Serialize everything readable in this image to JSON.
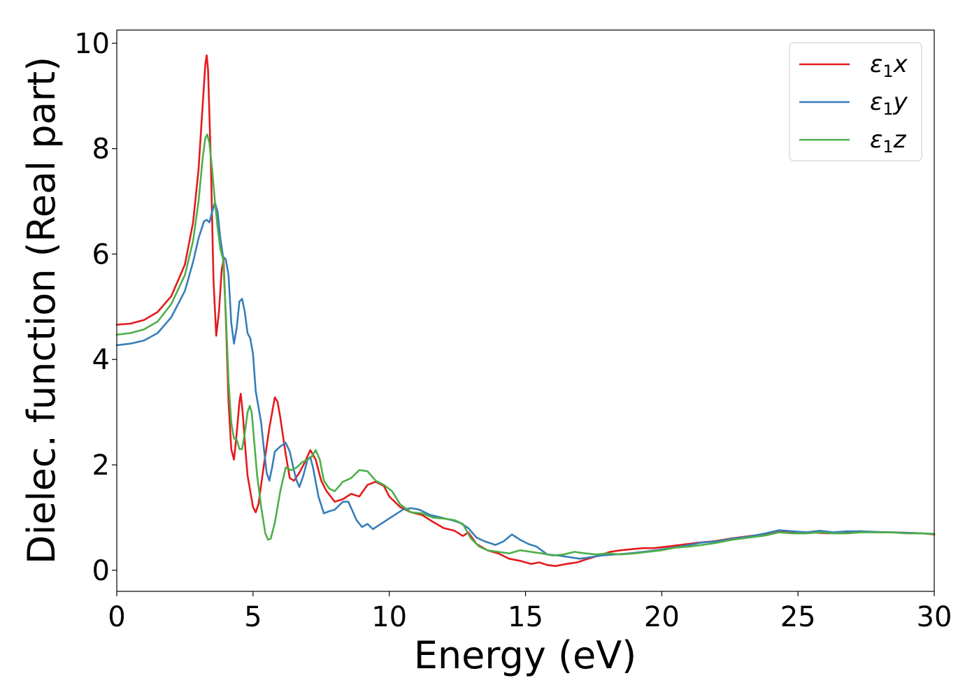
{
  "chart_data": {
    "type": "line",
    "xlabel": "Energy (eV)",
    "ylabel": "Dielec. function (Real part)",
    "xlim": [
      0,
      30
    ],
    "ylim": [
      -0.4,
      10.25
    ],
    "xticks": [
      0,
      5,
      10,
      15,
      20,
      25,
      30
    ],
    "yticks": [
      0,
      2,
      4,
      6,
      8,
      10
    ],
    "xtick_labels": [
      "0",
      "5",
      "10",
      "15",
      "20",
      "25",
      "30"
    ],
    "ytick_labels": [
      "0",
      "2",
      "4",
      "6",
      "8",
      "10"
    ],
    "grid": false,
    "legend_position": "top-right",
    "series": [
      {
        "name": "ε1x",
        "legend_main": "ε",
        "legend_sub": "1",
        "legend_var": "x",
        "color": "#e41a1c",
        "points": [
          [
            0,
            4.66
          ],
          [
            0.5,
            4.68
          ],
          [
            1,
            4.75
          ],
          [
            1.5,
            4.9
          ],
          [
            2,
            5.2
          ],
          [
            2.5,
            5.8
          ],
          [
            2.8,
            6.6
          ],
          [
            3.0,
            7.6
          ],
          [
            3.15,
            8.8
          ],
          [
            3.25,
            9.6
          ],
          [
            3.3,
            9.77
          ],
          [
            3.35,
            9.5
          ],
          [
            3.45,
            7.8
          ],
          [
            3.55,
            5.5
          ],
          [
            3.65,
            4.45
          ],
          [
            3.75,
            4.9
          ],
          [
            3.85,
            5.7
          ],
          [
            3.92,
            5.9
          ],
          [
            4.0,
            4.8
          ],
          [
            4.1,
            3.2
          ],
          [
            4.2,
            2.3
          ],
          [
            4.3,
            2.1
          ],
          [
            4.4,
            2.6
          ],
          [
            4.5,
            3.2
          ],
          [
            4.55,
            3.35
          ],
          [
            4.62,
            3.0
          ],
          [
            4.72,
            2.3
          ],
          [
            4.8,
            1.8
          ],
          [
            4.9,
            1.5
          ],
          [
            5.0,
            1.2
          ],
          [
            5.1,
            1.1
          ],
          [
            5.2,
            1.25
          ],
          [
            5.4,
            2.0
          ],
          [
            5.6,
            2.7
          ],
          [
            5.8,
            3.28
          ],
          [
            5.9,
            3.2
          ],
          [
            6.0,
            2.9
          ],
          [
            6.2,
            2.2
          ],
          [
            6.35,
            1.75
          ],
          [
            6.5,
            1.7
          ],
          [
            6.7,
            1.85
          ],
          [
            6.9,
            2.05
          ],
          [
            7.1,
            2.28
          ],
          [
            7.3,
            2.1
          ],
          [
            7.5,
            1.7
          ],
          [
            7.7,
            1.5
          ],
          [
            8.0,
            1.3
          ],
          [
            8.3,
            1.35
          ],
          [
            8.6,
            1.45
          ],
          [
            8.9,
            1.4
          ],
          [
            9.2,
            1.62
          ],
          [
            9.5,
            1.68
          ],
          [
            9.8,
            1.6
          ],
          [
            10.0,
            1.4
          ],
          [
            10.4,
            1.2
          ],
          [
            10.8,
            1.1
          ],
          [
            11.2,
            1.05
          ],
          [
            11.6,
            0.92
          ],
          [
            12.0,
            0.8
          ],
          [
            12.4,
            0.75
          ],
          [
            12.7,
            0.65
          ],
          [
            12.9,
            0.72
          ],
          [
            13.2,
            0.5
          ],
          [
            13.6,
            0.38
          ],
          [
            14.0,
            0.32
          ],
          [
            14.4,
            0.22
          ],
          [
            14.8,
            0.18
          ],
          [
            15.2,
            0.12
          ],
          [
            15.5,
            0.15
          ],
          [
            15.8,
            0.1
          ],
          [
            16.1,
            0.08
          ],
          [
            16.5,
            0.12
          ],
          [
            16.9,
            0.15
          ],
          [
            17.3,
            0.22
          ],
          [
            17.7,
            0.28
          ],
          [
            18.1,
            0.35
          ],
          [
            18.5,
            0.38
          ],
          [
            18.9,
            0.4
          ],
          [
            19.3,
            0.42
          ],
          [
            19.7,
            0.42
          ],
          [
            20.2,
            0.45
          ],
          [
            20.7,
            0.48
          ],
          [
            21.3,
            0.52
          ],
          [
            21.9,
            0.55
          ],
          [
            22.5,
            0.6
          ],
          [
            23.1,
            0.64
          ],
          [
            23.7,
            0.68
          ],
          [
            24.3,
            0.73
          ],
          [
            24.9,
            0.72
          ],
          [
            25.5,
            0.72
          ],
          [
            26.1,
            0.7
          ],
          [
            26.7,
            0.72
          ],
          [
            27.3,
            0.74
          ],
          [
            27.9,
            0.72
          ],
          [
            28.5,
            0.72
          ],
          [
            29.1,
            0.71
          ],
          [
            29.6,
            0.7
          ],
          [
            30,
            0.68
          ]
        ]
      },
      {
        "name": "ε1y",
        "legend_main": "ε",
        "legend_sub": "1",
        "legend_var": "y",
        "color": "#377eb8",
        "points": [
          [
            0,
            4.27
          ],
          [
            0.5,
            4.3
          ],
          [
            1,
            4.36
          ],
          [
            1.5,
            4.5
          ],
          [
            2,
            4.8
          ],
          [
            2.5,
            5.3
          ],
          [
            2.8,
            5.85
          ],
          [
            3.0,
            6.3
          ],
          [
            3.2,
            6.62
          ],
          [
            3.3,
            6.65
          ],
          [
            3.4,
            6.6
          ],
          [
            3.5,
            6.8
          ],
          [
            3.6,
            6.98
          ],
          [
            3.7,
            6.8
          ],
          [
            3.8,
            6.3
          ],
          [
            3.9,
            5.95
          ],
          [
            4.0,
            5.9
          ],
          [
            4.1,
            5.6
          ],
          [
            4.2,
            4.7
          ],
          [
            4.3,
            4.3
          ],
          [
            4.4,
            4.6
          ],
          [
            4.5,
            5.1
          ],
          [
            4.6,
            5.15
          ],
          [
            4.7,
            4.9
          ],
          [
            4.8,
            4.5
          ],
          [
            4.9,
            4.4
          ],
          [
            5.0,
            4.1
          ],
          [
            5.1,
            3.4
          ],
          [
            5.2,
            3.1
          ],
          [
            5.3,
            2.8
          ],
          [
            5.4,
            2.3
          ],
          [
            5.5,
            1.85
          ],
          [
            5.6,
            1.7
          ],
          [
            5.7,
            1.95
          ],
          [
            5.8,
            2.25
          ],
          [
            6.0,
            2.35
          ],
          [
            6.2,
            2.42
          ],
          [
            6.35,
            2.25
          ],
          [
            6.5,
            1.9
          ],
          [
            6.6,
            1.7
          ],
          [
            6.7,
            1.58
          ],
          [
            6.85,
            1.8
          ],
          [
            7.0,
            2.1
          ],
          [
            7.1,
            2.15
          ],
          [
            7.2,
            1.95
          ],
          [
            7.4,
            1.4
          ],
          [
            7.6,
            1.08
          ],
          [
            7.8,
            1.12
          ],
          [
            8.0,
            1.15
          ],
          [
            8.3,
            1.3
          ],
          [
            8.5,
            1.3
          ],
          [
            8.8,
            0.95
          ],
          [
            9.0,
            0.82
          ],
          [
            9.2,
            0.88
          ],
          [
            9.4,
            0.78
          ],
          [
            9.6,
            0.85
          ],
          [
            9.9,
            0.95
          ],
          [
            10.2,
            1.05
          ],
          [
            10.5,
            1.15
          ],
          [
            10.8,
            1.18
          ],
          [
            11.1,
            1.15
          ],
          [
            11.5,
            1.05
          ],
          [
            11.9,
            1.0
          ],
          [
            12.3,
            0.95
          ],
          [
            12.6,
            0.9
          ],
          [
            12.9,
            0.8
          ],
          [
            13.2,
            0.62
          ],
          [
            13.5,
            0.55
          ],
          [
            13.9,
            0.48
          ],
          [
            14.2,
            0.55
          ],
          [
            14.5,
            0.68
          ],
          [
            14.8,
            0.58
          ],
          [
            15.1,
            0.5
          ],
          [
            15.4,
            0.45
          ],
          [
            15.8,
            0.3
          ],
          [
            16.2,
            0.28
          ],
          [
            16.6,
            0.25
          ],
          [
            17.0,
            0.22
          ],
          [
            17.4,
            0.25
          ],
          [
            17.8,
            0.28
          ],
          [
            18.3,
            0.3
          ],
          [
            18.8,
            0.32
          ],
          [
            19.3,
            0.35
          ],
          [
            19.8,
            0.38
          ],
          [
            20.3,
            0.42
          ],
          [
            20.8,
            0.46
          ],
          [
            21.4,
            0.52
          ],
          [
            22.0,
            0.55
          ],
          [
            22.6,
            0.6
          ],
          [
            23.2,
            0.64
          ],
          [
            23.8,
            0.7
          ],
          [
            24.3,
            0.76
          ],
          [
            24.8,
            0.74
          ],
          [
            25.3,
            0.72
          ],
          [
            25.8,
            0.75
          ],
          [
            26.3,
            0.72
          ],
          [
            26.8,
            0.74
          ],
          [
            27.3,
            0.74
          ],
          [
            27.8,
            0.73
          ],
          [
            28.4,
            0.72
          ],
          [
            29.0,
            0.71
          ],
          [
            29.5,
            0.7
          ],
          [
            30,
            0.69
          ]
        ]
      },
      {
        "name": "ε1z",
        "legend_main": "ε",
        "legend_sub": "1",
        "legend_var": "z",
        "color": "#4daf4a",
        "points": [
          [
            0,
            4.47
          ],
          [
            0.5,
            4.5
          ],
          [
            1,
            4.57
          ],
          [
            1.5,
            4.72
          ],
          [
            2,
            5.05
          ],
          [
            2.5,
            5.6
          ],
          [
            2.8,
            6.25
          ],
          [
            3.0,
            7.0
          ],
          [
            3.15,
            7.8
          ],
          [
            3.25,
            8.2
          ],
          [
            3.32,
            8.27
          ],
          [
            3.4,
            8.1
          ],
          [
            3.5,
            7.6
          ],
          [
            3.6,
            7.0
          ],
          [
            3.7,
            6.5
          ],
          [
            3.8,
            6.1
          ],
          [
            3.9,
            5.9
          ],
          [
            4.0,
            4.9
          ],
          [
            4.1,
            3.6
          ],
          [
            4.2,
            2.8
          ],
          [
            4.3,
            2.5
          ],
          [
            4.4,
            2.48
          ],
          [
            4.5,
            2.3
          ],
          [
            4.6,
            2.3
          ],
          [
            4.7,
            2.6
          ],
          [
            4.8,
            3.0
          ],
          [
            4.88,
            3.12
          ],
          [
            4.95,
            3.0
          ],
          [
            5.05,
            2.4
          ],
          [
            5.15,
            1.8
          ],
          [
            5.3,
            1.2
          ],
          [
            5.45,
            0.7
          ],
          [
            5.55,
            0.58
          ],
          [
            5.65,
            0.6
          ],
          [
            5.8,
            0.9
          ],
          [
            6.0,
            1.5
          ],
          [
            6.2,
            1.95
          ],
          [
            6.4,
            1.9
          ],
          [
            6.6,
            1.95
          ],
          [
            6.8,
            2.05
          ],
          [
            7.0,
            2.1
          ],
          [
            7.15,
            2.15
          ],
          [
            7.3,
            2.28
          ],
          [
            7.45,
            2.1
          ],
          [
            7.6,
            1.7
          ],
          [
            7.8,
            1.55
          ],
          [
            8.0,
            1.5
          ],
          [
            8.3,
            1.68
          ],
          [
            8.6,
            1.75
          ],
          [
            8.9,
            1.9
          ],
          [
            9.2,
            1.88
          ],
          [
            9.5,
            1.7
          ],
          [
            9.8,
            1.62
          ],
          [
            10.1,
            1.5
          ],
          [
            10.4,
            1.25
          ],
          [
            10.8,
            1.1
          ],
          [
            11.2,
            1.08
          ],
          [
            11.6,
            1.0
          ],
          [
            12.0,
            0.98
          ],
          [
            12.4,
            0.95
          ],
          [
            12.7,
            0.88
          ],
          [
            13.0,
            0.6
          ],
          [
            13.3,
            0.45
          ],
          [
            13.6,
            0.38
          ],
          [
            14.0,
            0.35
          ],
          [
            14.4,
            0.32
          ],
          [
            14.8,
            0.38
          ],
          [
            15.2,
            0.35
          ],
          [
            15.6,
            0.32
          ],
          [
            16.0,
            0.28
          ],
          [
            16.4,
            0.3
          ],
          [
            16.8,
            0.35
          ],
          [
            17.2,
            0.32
          ],
          [
            17.6,
            0.3
          ],
          [
            18.0,
            0.32
          ],
          [
            18.5,
            0.3
          ],
          [
            19.0,
            0.32
          ],
          [
            19.5,
            0.35
          ],
          [
            20.0,
            0.38
          ],
          [
            20.5,
            0.43
          ],
          [
            21.0,
            0.45
          ],
          [
            21.5,
            0.48
          ],
          [
            22.0,
            0.52
          ],
          [
            22.6,
            0.58
          ],
          [
            23.2,
            0.62
          ],
          [
            23.8,
            0.66
          ],
          [
            24.3,
            0.72
          ],
          [
            24.8,
            0.7
          ],
          [
            25.3,
            0.7
          ],
          [
            25.8,
            0.72
          ],
          [
            26.3,
            0.7
          ],
          [
            26.8,
            0.7
          ],
          [
            27.3,
            0.72
          ],
          [
            27.8,
            0.72
          ],
          [
            28.4,
            0.72
          ],
          [
            29.0,
            0.7
          ],
          [
            29.5,
            0.7
          ],
          [
            30,
            0.69
          ]
        ]
      }
    ]
  }
}
